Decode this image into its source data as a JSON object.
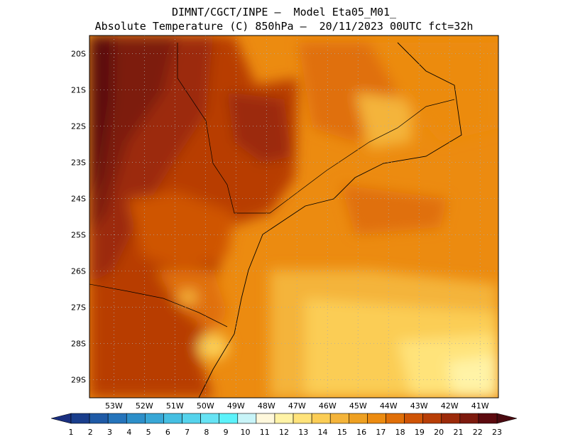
{
  "header": {
    "line1": "DIMNT/CGCT/INPE –  Model Eta05_M01_",
    "line2": "Absolute Temperature (C) 850hPa –  20/11/2023 00UTC fct=32h"
  },
  "map": {
    "lat_range": [
      -29.5,
      -19.5
    ],
    "lon_range": [
      -53.8,
      -40.4
    ],
    "lat_labels": [
      "20S",
      "21S",
      "22S",
      "23S",
      "24S",
      "25S",
      "26S",
      "27S",
      "28S",
      "29S"
    ],
    "lat_values": [
      -20,
      -21,
      -22,
      -23,
      -24,
      -25,
      -26,
      -27,
      -28,
      -29
    ],
    "lon_labels": [
      "53W",
      "52W",
      "51W",
      "50W",
      "49W",
      "48W",
      "47W",
      "46W",
      "45W",
      "44W",
      "43W",
      "42W",
      "41W"
    ],
    "lon_values": [
      -53,
      -52,
      -51,
      -50,
      -49,
      -48,
      -47,
      -46,
      -45,
      -44,
      -43,
      -42,
      -41
    ],
    "gridlines": "dotted"
  },
  "colorbar": {
    "labels": [
      "1",
      "2",
      "3",
      "4",
      "5",
      "6",
      "7",
      "8",
      "9",
      "10",
      "11",
      "12",
      "13",
      "14",
      "15",
      "16",
      "17",
      "18",
      "19",
      "20",
      "21",
      "22",
      "23"
    ],
    "colors": [
      "#1a3e8c",
      "#1f5aa6",
      "#2574bb",
      "#2d8fc9",
      "#38a7d6",
      "#45bfe2",
      "#55d3ec",
      "#66e3f4",
      "#5cf2fa",
      "#c8f4f8",
      "#fff8dc",
      "#fff3a6",
      "#ffe37a",
      "#fbcd55",
      "#f4b43a",
      "#eea021",
      "#ec8b10",
      "#e06f08",
      "#cf5405",
      "#b83e06",
      "#9c2a0a",
      "#7d1a0e",
      "#5c0a0f"
    ],
    "min_color": "#1a2f80",
    "max_color": "#4a0a10"
  }
}
